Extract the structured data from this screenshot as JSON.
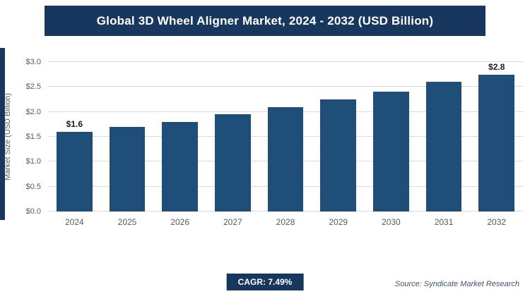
{
  "title": "Global 3D Wheel Aligner Market, 2024 - 2032 (USD Billion)",
  "chart_data": {
    "type": "bar",
    "categories": [
      "2024",
      "2025",
      "2026",
      "2027",
      "2028",
      "2029",
      "2030",
      "2031",
      "2032"
    ],
    "values": [
      1.6,
      1.7,
      1.8,
      1.95,
      2.1,
      2.25,
      2.4,
      2.6,
      2.8
    ],
    "annotations": [
      {
        "category": "2024",
        "text": "$1.6"
      },
      {
        "category": "2032",
        "text": "$2.8"
      }
    ],
    "title": "Global 3D Wheel Aligner Market, 2024 - 2032 (USD Billion)",
    "xlabel": "",
    "ylabel": "Market Size (USD Billion)",
    "ylim": [
      0,
      3.0
    ],
    "ytick_step": 0.5,
    "ytick_labels": [
      "$0.0",
      "$0.5",
      "$1.0",
      "$1.5",
      "$2.0",
      "$2.5",
      "$3.0"
    ],
    "grid": true,
    "legend": "none",
    "bar_color": "#1f4e79"
  },
  "footer": {
    "cagr_label": "CAGR: 7.49%",
    "source": "Source: Syndicate Market Research"
  },
  "colors": {
    "banner_bg": "#17375e",
    "bar": "#1f4e79",
    "badge_bg": "#17375e",
    "gridline": "#d9d9d9",
    "axis_text": "#595959"
  }
}
